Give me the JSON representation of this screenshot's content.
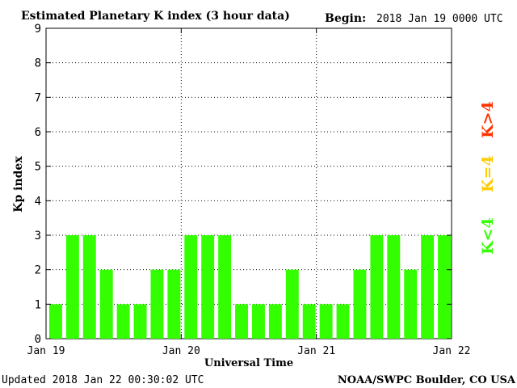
{
  "header": {
    "title": "Estimated Planetary K index (3 hour data)",
    "begin_label": "Begin:",
    "begin_value": "2018 Jan 19 0000 UTC"
  },
  "footer": {
    "updated": "Updated 2018 Jan 22 00:30:02 UTC",
    "source": "NOAA/SWPC Boulder, CO USA"
  },
  "legend": {
    "above": {
      "label": "K>4",
      "color": "#ff3300"
    },
    "equal": {
      "label": "K=4",
      "color": "#ffcc00"
    },
    "below": {
      "label": "K<4",
      "color": "#33ff00"
    }
  },
  "chart_data": {
    "type": "bar",
    "title": "Estimated Planetary K index (3 hour data)",
    "xlabel": "Universal Time",
    "ylabel": "Kp index",
    "ylim": [
      0,
      9
    ],
    "yticks": [
      0,
      1,
      2,
      3,
      4,
      5,
      6,
      7,
      8,
      9
    ],
    "day_labels": [
      "Jan 19",
      "Jan 20",
      "Jan 21",
      "Jan 22"
    ],
    "bars_per_day": 8,
    "values": [
      1,
      3,
      3,
      2,
      1,
      1,
      2,
      2,
      3,
      3,
      3,
      1,
      1,
      1,
      2,
      1,
      1,
      1,
      2,
      3,
      3,
      2,
      3,
      3
    ],
    "bar_color": "#33ff00",
    "grid": true
  }
}
